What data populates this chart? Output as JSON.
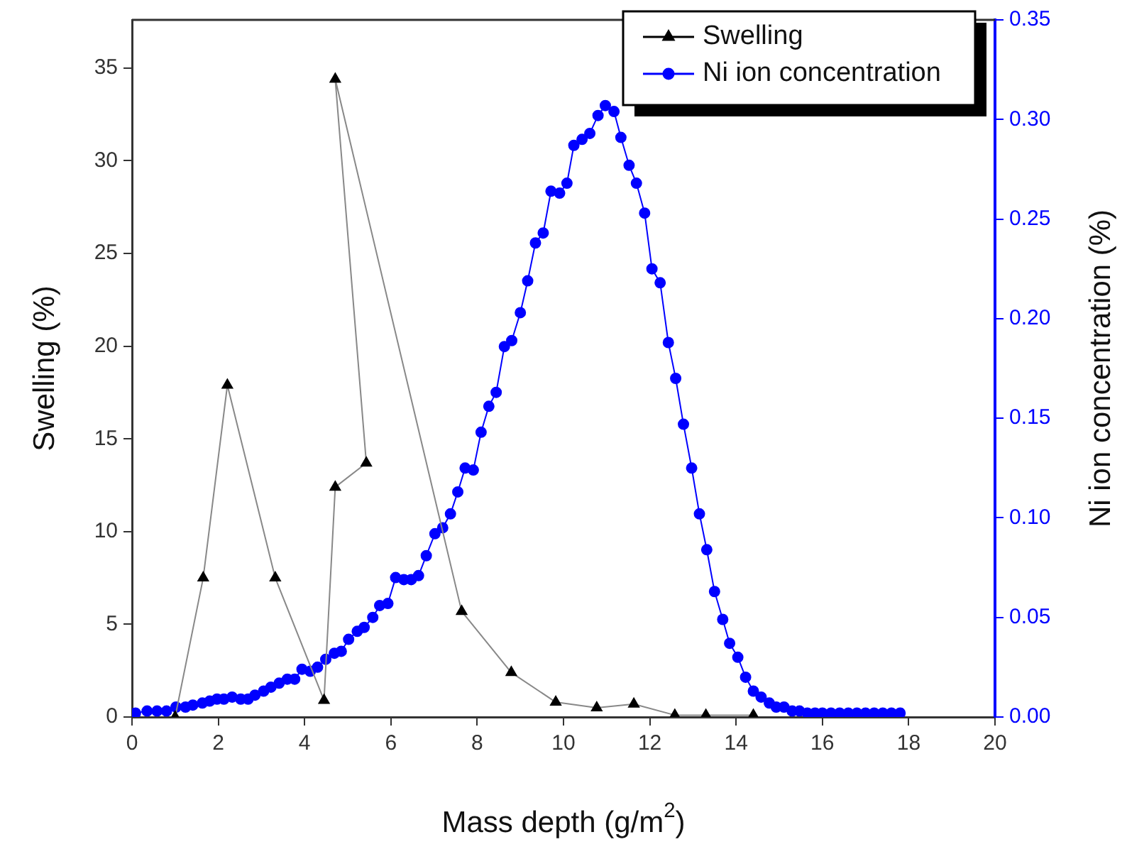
{
  "chart_data": {
    "type": "line",
    "xlabel": "Mass depth (g/m$^{2}$)",
    "ylabel": "Swelling (%)",
    "y2label": "Ni ion concentration (%)",
    "xlim": [
      0,
      20
    ],
    "xticks": [
      0,
      2,
      4,
      6,
      8,
      10,
      12,
      14,
      16,
      18,
      20
    ],
    "ylim": [
      0,
      37.6
    ],
    "yticks": [
      0,
      5,
      10,
      15,
      20,
      25,
      30,
      35
    ],
    "y2lim": [
      0,
      0.35
    ],
    "y2ticks": [
      {
        "value": 0,
        "label": "0.00"
      },
      {
        "value": 0.05,
        "label": "0.05"
      },
      {
        "value": 0.1,
        "label": "0.10"
      },
      {
        "value": 0.15,
        "label": "0.15"
      },
      {
        "value": 0.2,
        "label": "0.20"
      },
      {
        "value": 0.25,
        "label": "0.25"
      },
      {
        "value": 0.3,
        "label": "0.30"
      },
      {
        "value": 0.35,
        "label": "0.35"
      }
    ],
    "grid": false,
    "legend": "top right",
    "line_style": "solid",
    "series": [
      {
        "name": "Swelling",
        "color": "#000000",
        "marker": "triangle",
        "axis": "y",
        "x": [
          1.0,
          1.65,
          2.21,
          3.32,
          4.45,
          4.71,
          5.43,
          4.71,
          7.64,
          8.79,
          9.82,
          10.77,
          11.63,
          12.58,
          13.3,
          14.4
        ],
        "values": [
          0,
          7.5,
          17.9,
          7.5,
          0.9,
          12.4,
          13.7,
          34.4,
          5.7,
          2.4,
          0.8,
          0.5,
          0.7,
          0.1,
          0.1,
          0.1
        ]
      },
      {
        "name": "Ni ion concentration",
        "color": "#0000ff",
        "marker": "circle",
        "axis": "y2",
        "x": [
          0.08,
          0.35,
          0.58,
          0.8,
          1.02,
          1.24,
          1.41,
          1.63,
          1.8,
          1.97,
          2.13,
          2.32,
          2.52,
          2.69,
          2.85,
          3.05,
          3.22,
          3.41,
          3.6,
          3.77,
          3.94,
          4.13,
          4.3,
          4.49,
          4.69,
          4.85,
          5.02,
          5.22,
          5.38,
          5.58,
          5.74,
          5.93,
          6.11,
          6.3,
          6.47,
          6.64,
          6.82,
          7.02,
          7.2,
          7.38,
          7.55,
          7.72,
          7.91,
          8.09,
          8.27,
          8.44,
          8.63,
          8.8,
          9.0,
          9.17,
          9.35,
          9.53,
          9.71,
          9.91,
          10.08,
          10.24,
          10.43,
          10.61,
          10.8,
          10.97,
          11.17,
          11.33,
          11.52,
          11.69,
          11.88,
          12.05,
          12.24,
          12.43,
          12.6,
          12.78,
          12.97,
          13.15,
          13.32,
          13.5,
          13.69,
          13.85,
          14.04,
          14.22,
          14.4,
          14.58,
          14.77,
          14.93,
          15.11,
          15.3,
          15.47,
          15.65,
          15.83,
          16.0,
          16.2,
          16.4,
          16.6,
          16.8,
          17.0,
          17.2,
          17.4,
          17.6,
          17.8
        ],
        "values": [
          0.002,
          0.003,
          0.003,
          0.003,
          0.005,
          0.005,
          0.006,
          0.007,
          0.008,
          0.009,
          0.009,
          0.01,
          0.009,
          0.009,
          0.011,
          0.013,
          0.015,
          0.017,
          0.019,
          0.019,
          0.024,
          0.023,
          0.025,
          0.029,
          0.032,
          0.033,
          0.039,
          0.043,
          0.045,
          0.05,
          0.056,
          0.057,
          0.07,
          0.069,
          0.069,
          0.071,
          0.081,
          0.092,
          0.095,
          0.102,
          0.113,
          0.125,
          0.124,
          0.143,
          0.156,
          0.163,
          0.186,
          0.189,
          0.203,
          0.219,
          0.238,
          0.243,
          0.264,
          0.263,
          0.268,
          0.287,
          0.29,
          0.293,
          0.302,
          0.307,
          0.304,
          0.291,
          0.277,
          0.268,
          0.253,
          0.225,
          0.218,
          0.188,
          0.17,
          0.147,
          0.125,
          0.102,
          0.084,
          0.063,
          0.049,
          0.037,
          0.03,
          0.02,
          0.013,
          0.01,
          0.007,
          0.005,
          0.005,
          0.003,
          0.003,
          0.002,
          0.002,
          0.002,
          0.002,
          0.002,
          0.002,
          0.002,
          0.002,
          0.002,
          0.002,
          0.002,
          0.002
        ]
      }
    ]
  }
}
